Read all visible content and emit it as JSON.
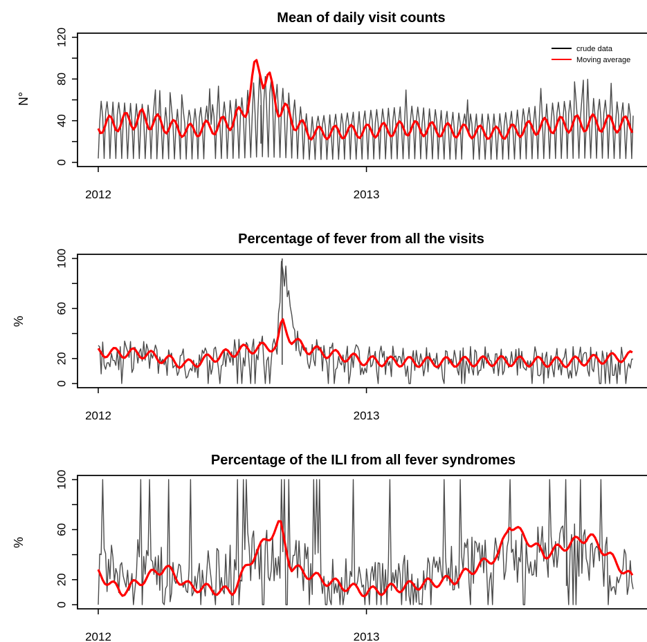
{
  "chart_data": [
    {
      "type": "line",
      "title": "Mean of daily visit counts",
      "xlabel": "",
      "ylabel": "N°",
      "xlim": [
        "2012-01-01",
        "2013-12-31"
      ],
      "ylim": [
        0,
        120
      ],
      "yticks": [
        0,
        40,
        80,
        120
      ],
      "xticks": [
        {
          "label": "2012",
          "value": "2012-01-01"
        },
        {
          "label": "2013",
          "value": "2013-01-01"
        }
      ],
      "grid": false,
      "legend": {
        "placement": "top-right",
        "entries": [
          {
            "name": "crude data",
            "color": "#000000"
          },
          {
            "name": "Moving average",
            "color": "#ff0000"
          }
        ]
      },
      "series": [
        {
          "name": "crude data",
          "color": "#4a4a4a",
          "x": [
            "2012-01-01",
            "2012-03-01",
            "2012-05-01",
            "2012-07-15",
            "2012-08-10",
            "2012-09-15",
            "2012-10-15",
            "2013-01-01",
            "2013-03-01",
            "2013-05-15",
            "2013-07-01",
            "2013-09-01",
            "2013-11-01",
            "2013-12-31"
          ],
          "values": [
            38,
            36,
            32,
            40,
            55,
            44,
            28,
            32,
            35,
            30,
            30,
            36,
            40,
            36
          ]
        },
        {
          "name": "Moving average",
          "color": "#ff0000",
          "x": [
            "2012-01-01",
            "2012-03-01",
            "2012-05-01",
            "2012-06-15",
            "2012-07-15",
            "2012-08-10",
            "2012-08-25",
            "2012-09-15",
            "2012-10-15",
            "2013-01-01",
            "2013-03-01",
            "2013-05-15",
            "2013-07-01",
            "2013-09-01",
            "2013-11-01",
            "2013-12-31"
          ],
          "values": [
            35,
            42,
            30,
            35,
            45,
            97,
            65,
            45,
            28,
            30,
            33,
            30,
            28,
            35,
            38,
            36
          ]
        }
      ]
    },
    {
      "type": "line",
      "title": "Percentage of fever from all the visits",
      "xlabel": "",
      "ylabel": "%",
      "xlim": [
        "2012-01-01",
        "2013-12-31"
      ],
      "ylim": [
        0,
        100
      ],
      "yticks": [
        0,
        20,
        60,
        100
      ],
      "xticks": [
        {
          "label": "2012",
          "value": "2012-01-01"
        },
        {
          "label": "2013",
          "value": "2013-01-01"
        }
      ],
      "grid": false,
      "series": [
        {
          "name": "crude data",
          "color": "#4a4a4a",
          "x": [
            "2012-01-01",
            "2012-03-01",
            "2012-05-01",
            "2012-07-15",
            "2012-09-01",
            "2012-09-08",
            "2012-10-01",
            "2013-01-01",
            "2013-04-01",
            "2013-07-01",
            "2013-10-01",
            "2013-12-31"
          ],
          "values": [
            20,
            22,
            15,
            25,
            30,
            100,
            25,
            18,
            17,
            18,
            17,
            20
          ]
        },
        {
          "name": "Moving average",
          "color": "#ff0000",
          "x": [
            "2012-01-01",
            "2012-03-01",
            "2012-05-01",
            "2012-07-15",
            "2012-09-01",
            "2012-09-08",
            "2012-09-20",
            "2012-10-15",
            "2013-01-01",
            "2013-04-01",
            "2013-07-01",
            "2013-10-01",
            "2013-12-31"
          ],
          "values": [
            25,
            24,
            15,
            27,
            30,
            50,
            35,
            27,
            18,
            17,
            18,
            17,
            22
          ]
        }
      ]
    },
    {
      "type": "line",
      "title": "Percentage of the ILI from all fever syndromes",
      "xlabel": "",
      "ylabel": "%",
      "xlim": [
        "2012-01-01",
        "2013-12-31"
      ],
      "ylim": [
        0,
        100
      ],
      "yticks": [
        0,
        20,
        60,
        100
      ],
      "xticks": [
        {
          "label": "2012",
          "value": "2012-01-01"
        },
        {
          "label": "2013",
          "value": "2013-01-01"
        }
      ],
      "grid": false,
      "series": [
        {
          "name": "crude data",
          "color": "#4a4a4a",
          "x": [
            "2012-01-01",
            "2012-03-01",
            "2012-05-01",
            "2012-07-15",
            "2012-09-01",
            "2012-11-01",
            "2013-01-01",
            "2013-04-01",
            "2013-06-01",
            "2013-08-01",
            "2013-10-01",
            "2013-12-31"
          ],
          "values": [
            25,
            30,
            15,
            35,
            40,
            20,
            15,
            20,
            40,
            40,
            45,
            25
          ]
        },
        {
          "name": "Moving average",
          "color": "#ff0000",
          "x": [
            "2012-01-01",
            "2012-02-01",
            "2012-04-01",
            "2012-05-01",
            "2012-07-01",
            "2012-08-01",
            "2012-09-05",
            "2012-09-20",
            "2012-11-01",
            "2013-01-01",
            "2013-03-01",
            "2013-05-01",
            "2013-07-01",
            "2013-07-15",
            "2013-09-01",
            "2013-11-01",
            "2013-12-31"
          ],
          "values": [
            25,
            10,
            30,
            15,
            10,
            40,
            65,
            30,
            20,
            10,
            15,
            20,
            40,
            65,
            40,
            55,
            20
          ]
        }
      ]
    }
  ]
}
